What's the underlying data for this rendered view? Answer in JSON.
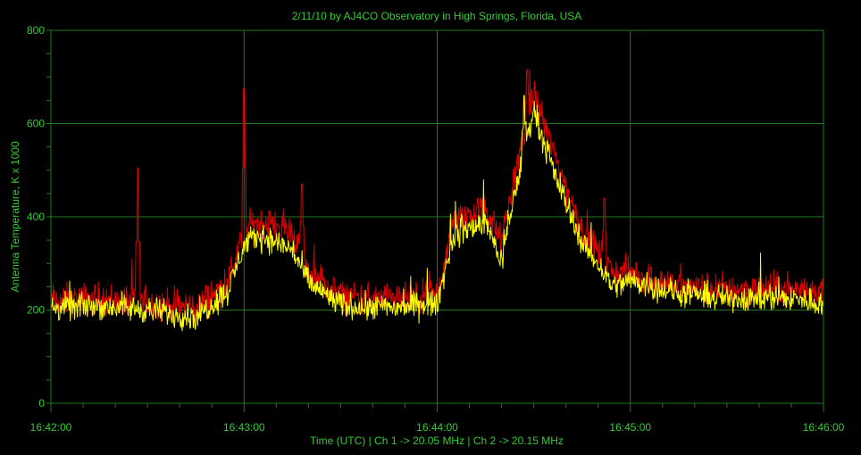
{
  "chart_data": {
    "type": "line",
    "title": "2/11/10  by  AJ4CO Observatory  in  High Springs, Florida, USA",
    "xlabel": "Time (UTC)  |  Ch 1 -> 20.05 MHz  |  Ch 2 -> 20.15 MHz",
    "ylabel": "Antenna Temperature, K x 1000",
    "x_range": [
      "16:42:00",
      "16:46:00"
    ],
    "x_ticks": [
      "16:42:00",
      "16:43:00",
      "16:44:00",
      "16:45:00",
      "16:46:00"
    ],
    "ylim": [
      0,
      800
    ],
    "y_ticks": [
      0,
      200,
      400,
      600,
      800
    ],
    "grid": true,
    "background": "#000000",
    "grid_color": "#1f7a1f",
    "label_color": "#33cc33",
    "series": [
      {
        "name": "Ch 1 -> 20.05 MHz",
        "color": "#dd0000",
        "x": [
          "16:42:00",
          "16:42:15",
          "16:42:30",
          "16:42:45",
          "16:42:55",
          "16:43:00",
          "16:43:05",
          "16:43:15",
          "16:43:20",
          "16:43:30",
          "16:43:45",
          "16:43:55",
          "16:44:00",
          "16:44:05",
          "16:44:15",
          "16:44:20",
          "16:44:25",
          "16:44:30",
          "16:44:35",
          "16:44:45",
          "16:44:55",
          "16:45:00",
          "16:45:15",
          "16:45:30",
          "16:45:45",
          "16:46:00"
        ],
        "values": [
          220,
          225,
          215,
          205,
          260,
          370,
          390,
          370,
          280,
          230,
          220,
          225,
          230,
          390,
          420,
          345,
          520,
          670,
          560,
          370,
          280,
          280,
          250,
          245,
          245,
          240
        ],
        "spikes": [
          {
            "x": "16:42:27",
            "y": 505
          },
          {
            "x": "16:43:00",
            "y": 675
          },
          {
            "x": "16:43:18",
            "y": 470
          },
          {
            "x": "16:44:28",
            "y": 715
          },
          {
            "x": "16:44:52",
            "y": 440
          }
        ]
      },
      {
        "name": "Ch 2 -> 20.15 MHz",
        "color": "#ffff00",
        "x": [
          "16:42:00",
          "16:42:15",
          "16:42:30",
          "16:42:45",
          "16:42:55",
          "16:43:00",
          "16:43:05",
          "16:43:15",
          "16:43:20",
          "16:43:30",
          "16:43:45",
          "16:43:55",
          "16:44:00",
          "16:44:05",
          "16:44:15",
          "16:44:20",
          "16:44:25",
          "16:44:30",
          "16:44:35",
          "16:44:45",
          "16:44:55",
          "16:45:00",
          "16:45:15",
          "16:45:30",
          "16:45:45",
          "16:46:00"
        ],
        "values": [
          205,
          210,
          200,
          185,
          240,
          340,
          360,
          330,
          260,
          210,
          205,
          210,
          215,
          360,
          390,
          305,
          480,
          630,
          520,
          345,
          250,
          265,
          235,
          225,
          228,
          215
        ],
        "spikes": [
          {
            "x": "16:44:27",
            "y": 660
          }
        ]
      }
    ]
  }
}
